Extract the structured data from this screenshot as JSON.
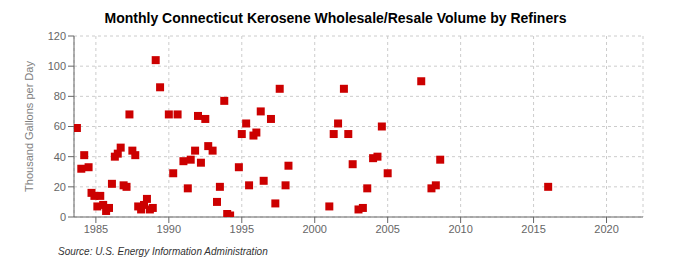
{
  "chart_data": {
    "type": "scatter",
    "title": "Monthly Connecticut Kerosene Wholesale/Resale Volume by Refiners",
    "ylabel": "Thousand Gallons per Day",
    "source": "Source: U.S. Energy Information Administration",
    "color": "#cc0000",
    "marker": "square",
    "grid": true,
    "xlim": [
      1983.5,
      2022.5
    ],
    "ylim": [
      0,
      120
    ],
    "xticks": [
      1985,
      1990,
      1995,
      2000,
      2005,
      2010,
      2015,
      2020
    ],
    "yticks": [
      0,
      20,
      40,
      60,
      80,
      100,
      120
    ],
    "x": [
      1983.7,
      1984.0,
      1984.2,
      1984.5,
      1984.7,
      1984.9,
      1985.1,
      1985.3,
      1985.5,
      1985.7,
      1985.9,
      1986.1,
      1986.3,
      1986.5,
      1986.7,
      1986.9,
      1987.1,
      1987.3,
      1987.5,
      1987.7,
      1987.9,
      1988.1,
      1988.3,
      1988.5,
      1988.7,
      1988.9,
      1989.1,
      1989.4,
      1990.0,
      1990.3,
      1990.6,
      1991.0,
      1991.3,
      1991.5,
      1991.8,
      1992.0,
      1992.2,
      1992.5,
      1992.7,
      1993.0,
      1993.3,
      1993.5,
      1993.8,
      1994.0,
      1994.2,
      1994.8,
      1995.0,
      1995.3,
      1995.5,
      1995.8,
      1996.0,
      1996.3,
      1996.5,
      1997.0,
      1997.3,
      1997.6,
      1998.0,
      1998.2,
      2001.0,
      2001.3,
      2001.6,
      2002.0,
      2002.3,
      2002.6,
      2003.0,
      2003.3,
      2003.6,
      2004.0,
      2004.3,
      2004.6,
      2005.0,
      2007.3,
      2008.0,
      2008.3,
      2008.6,
      2016.0
    ],
    "values": [
      59,
      32,
      41,
      33,
      16,
      14,
      7,
      14,
      8,
      4,
      6,
      22,
      40,
      42,
      46,
      21,
      20,
      68,
      44,
      41,
      7,
      5,
      8,
      12,
      5,
      6,
      104,
      86,
      68,
      29,
      68,
      37,
      19,
      38,
      44,
      67,
      36,
      65,
      47,
      44,
      10,
      20,
      77,
      2,
      1,
      33,
      55,
      62,
      21,
      54,
      56,
      70,
      24,
      65,
      9,
      85,
      21,
      34,
      7,
      55,
      62,
      85,
      55,
      35,
      5,
      6,
      19,
      39,
      40,
      60,
      29,
      90,
      19,
      21,
      38,
      20
    ]
  }
}
